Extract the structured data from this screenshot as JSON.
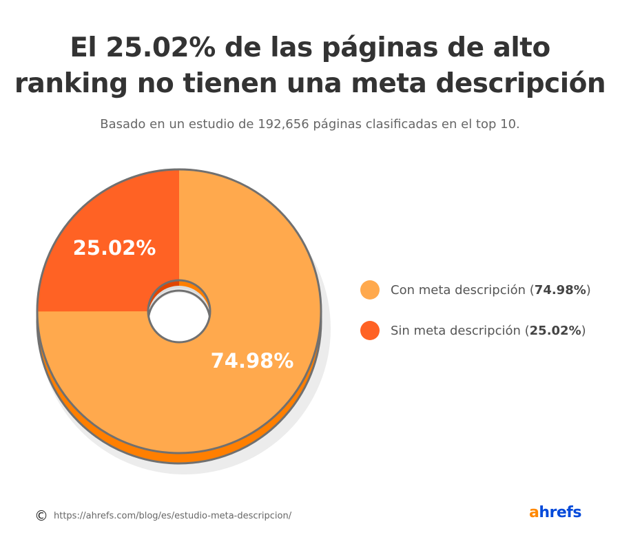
{
  "header": {
    "title_line1": "El 25.02% de las páginas de alto",
    "title_line2": "ranking no tienen una meta descripción",
    "subtitle": "Basado en un estudio de 192,656 páginas clasificadas en el top 10."
  },
  "chart_data": {
    "type": "pie",
    "title": "El 25.02% de las páginas de alto ranking no tienen una meta descripción",
    "subtitle": "Basado en un estudio de 192,656 páginas clasificadas en el top 10.",
    "legend_position": "right",
    "slices": [
      {
        "name": "Con meta descripción",
        "value": 74.98,
        "label": "74.98%",
        "color": "#FFA94D",
        "side_color": "#FF7F00"
      },
      {
        "name": "Sin meta descripción",
        "value": 25.02,
        "label": "25.02%",
        "color": "#FF6224",
        "side_color": "#E04500"
      }
    ]
  },
  "legend": [
    {
      "text": "Con meta descripción (",
      "value": "74.98%",
      "close": ")"
    },
    {
      "text": "Sin meta descripción (",
      "value": "25.02%",
      "close": ")"
    }
  ],
  "footer": {
    "copyright": "©",
    "url": "https://ahrefs.com/blog/es/estudio-meta-descripcion/",
    "logo_a": "a",
    "logo_rest": "hrefs"
  }
}
